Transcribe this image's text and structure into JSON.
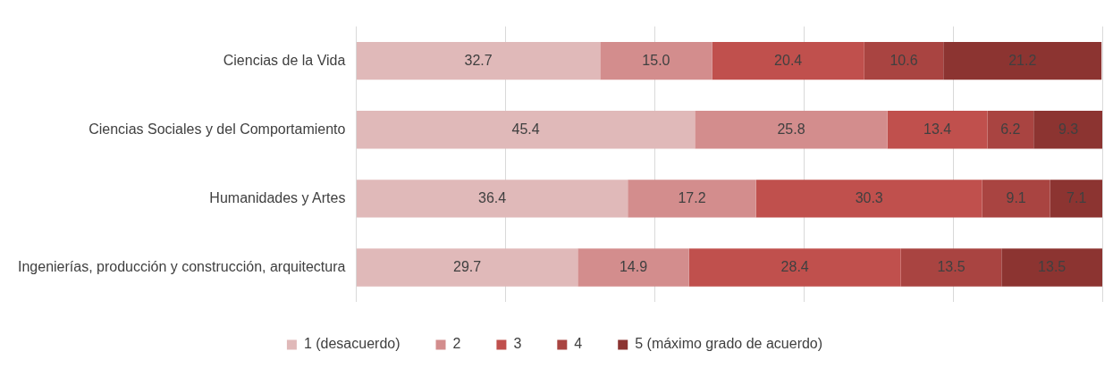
{
  "chart_data": {
    "type": "bar",
    "orientation": "horizontal",
    "stacked": true,
    "grid": "x",
    "legend": "bottom",
    "tick_labels": "y",
    "categories": [
      "Ciencias de la Vida",
      "Ciencias Sociales y del Comportamiento",
      "Humanidades y Artes",
      "Ingenierías, producción y construcción, arquitectura"
    ],
    "xlim": [
      0,
      100
    ],
    "xticks": [
      {
        "value": 0,
        "label": null
      },
      {
        "value": 20,
        "label": null
      },
      {
        "value": 40,
        "label": null
      },
      {
        "value": 60,
        "label": null
      },
      {
        "value": 80,
        "label": null
      },
      {
        "value": 100,
        "label": null
      }
    ],
    "series": [
      {
        "name": "1 (desacuerdo)",
        "color": "#e0b9b9",
        "values": [
          32.7,
          45.4,
          36.4,
          29.7
        ],
        "value_labels": [
          "32.7",
          "45.4",
          "36.4",
          "29.7"
        ]
      },
      {
        "name": "2",
        "color": "#d38d8d",
        "values": [
          15.0,
          25.8,
          17.2,
          14.9
        ],
        "value_labels": [
          "15.0",
          "25.8",
          "17.2",
          "14.9"
        ]
      },
      {
        "name": "3",
        "color": "#c0504d",
        "values": [
          20.4,
          13.4,
          30.3,
          28.4
        ],
        "value_labels": [
          "20.4",
          "13.4",
          "30.3",
          "28.4"
        ]
      },
      {
        "name": "4",
        "color": "#a94441",
        "values": [
          10.6,
          6.2,
          9.1,
          13.5
        ],
        "value_labels": [
          "10.6",
          "6.2",
          "9.1",
          "13.5"
        ]
      },
      {
        "name": "5 (máximo grado de acuerdo)",
        "color": "#8c3431",
        "values": [
          21.2,
          9.3,
          7.1,
          13.5
        ],
        "value_labels": [
          "21.2",
          "9.3",
          "7.1",
          "13.5"
        ]
      }
    ]
  }
}
